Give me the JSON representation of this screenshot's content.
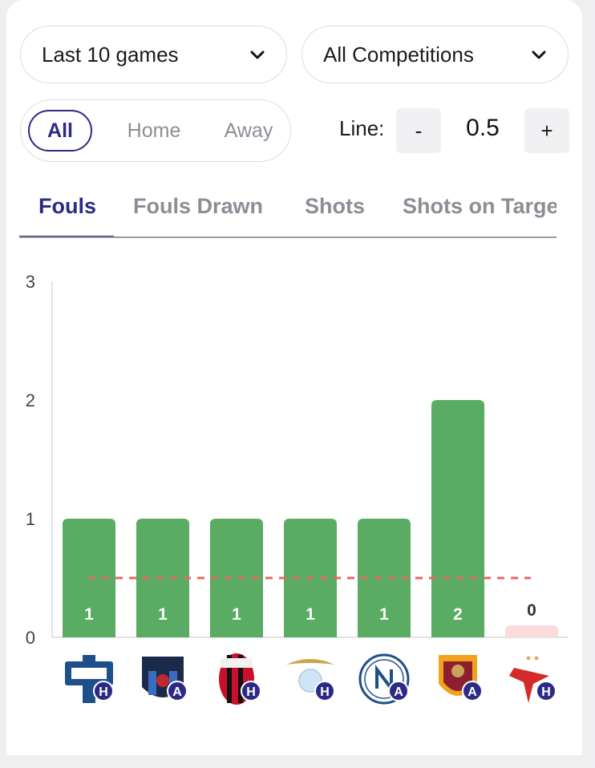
{
  "filters": {
    "games": "Last 10 games",
    "competition": "All Competitions"
  },
  "venue": {
    "all": "All",
    "home": "Home",
    "away": "Away",
    "selected": "All"
  },
  "line": {
    "label": "Line:",
    "minus": "-",
    "plus": "+",
    "value": "0.5"
  },
  "tabs": {
    "fouls": "Fouls",
    "fouls_drawn": "Fouls Drawn",
    "shots": "Shots",
    "shots_on_target": "Shots on Targe",
    "active": "Fouls"
  },
  "colors": {
    "accent": "#2c2a86",
    "over": "#5aac62",
    "under": "#fbdcdc",
    "line": "#e46a64"
  },
  "chart_data": {
    "type": "bar",
    "ylim": [
      0,
      3
    ],
    "yticks": [
      "0",
      "1",
      "2",
      "3"
    ],
    "line_value": 0.5,
    "categories": [
      "Como",
      "Pisa",
      "AC Milan",
      "Lazio",
      "Napoli",
      "Roma",
      "Slavia Praha"
    ],
    "values": [
      1,
      1,
      1,
      1,
      1,
      2,
      0
    ],
    "venue_markers": [
      "H",
      "A",
      "H",
      "H",
      "A",
      "A",
      "H"
    ],
    "icons": [
      "como-crest-icon",
      "pisa-crest-icon",
      "ac-milan-crest-icon",
      "lazio-eagle-icon",
      "napoli-crest-icon",
      "roma-wolf-icon",
      "slavia-star-icon"
    ],
    "grid": false
  }
}
